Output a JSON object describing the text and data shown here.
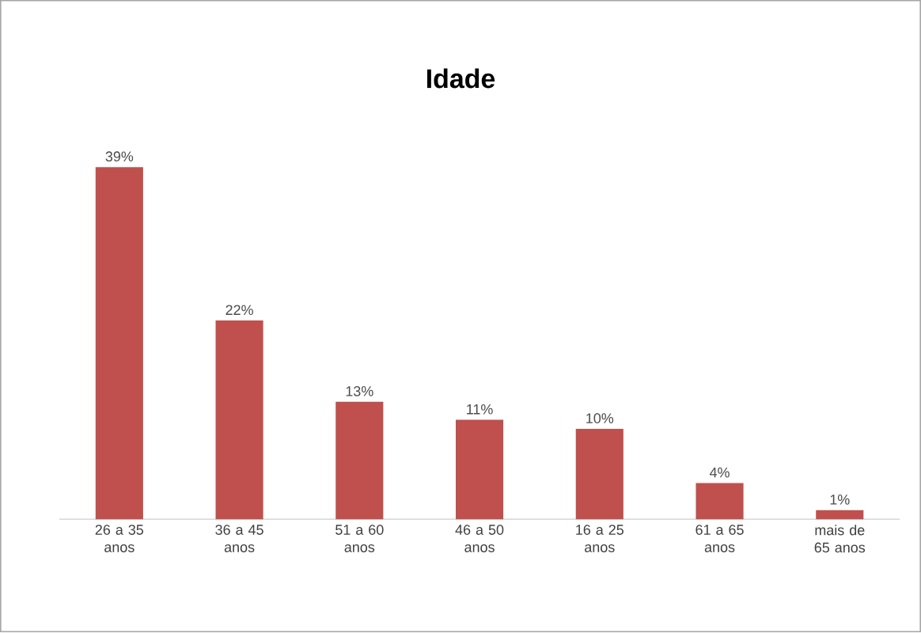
{
  "chart_data": {
    "type": "bar",
    "title": "Idade",
    "categories": [
      "26 a 35 anos",
      "36 a 45 anos",
      "51 a 60 anos",
      "46 a 50 anos",
      "16 a 25 anos",
      "61 a 65 anos",
      "mais de 65 anos"
    ],
    "values": [
      39,
      22,
      13,
      11,
      10,
      4,
      1
    ],
    "value_labels": [
      "39%",
      "22%",
      "13%",
      "11%",
      "10%",
      "4%",
      "1%"
    ],
    "color": "#c0504d"
  }
}
